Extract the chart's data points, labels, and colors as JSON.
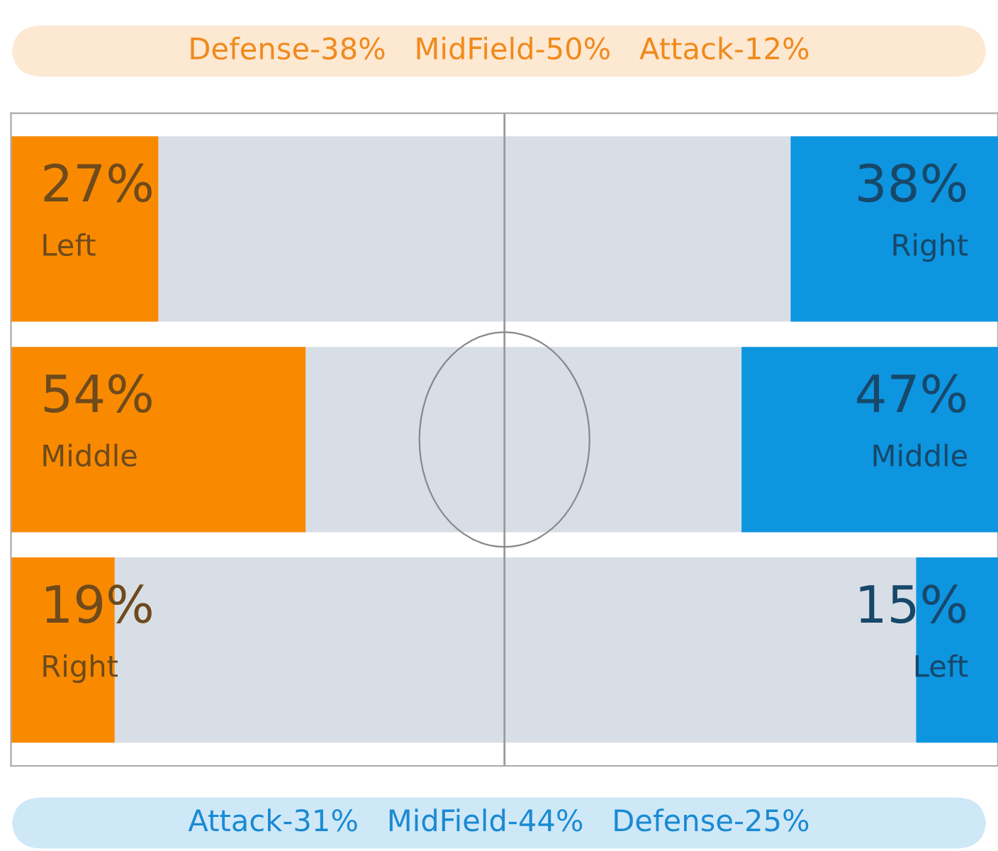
{
  "chart_data": [
    {
      "type": "bar",
      "orientation": "horizontal",
      "title": "Defense-38%   MidField-50%   Attack-12%",
      "categories": [
        "Left",
        "Middle",
        "Right"
      ],
      "series": [
        {
          "color": "#f98a00",
          "values": [
            27,
            54,
            19
          ],
          "value_labels": [
            "27%",
            "54%",
            "19%"
          ]
        }
      ],
      "tick_labels": false
    },
    {
      "type": "bar",
      "orientation": "horizontal",
      "annotations": [
        "Attack-31%   MidField-44%   Defense-25%"
      ],
      "categories": [
        "Right",
        "Middle",
        "Left"
      ],
      "series": [
        {
          "color": "#0d95e0",
          "values": [
            38,
            47,
            15
          ],
          "value_labels": [
            "38%",
            "47%",
            "15%"
          ]
        }
      ],
      "tick_labels": false
    }
  ]
}
